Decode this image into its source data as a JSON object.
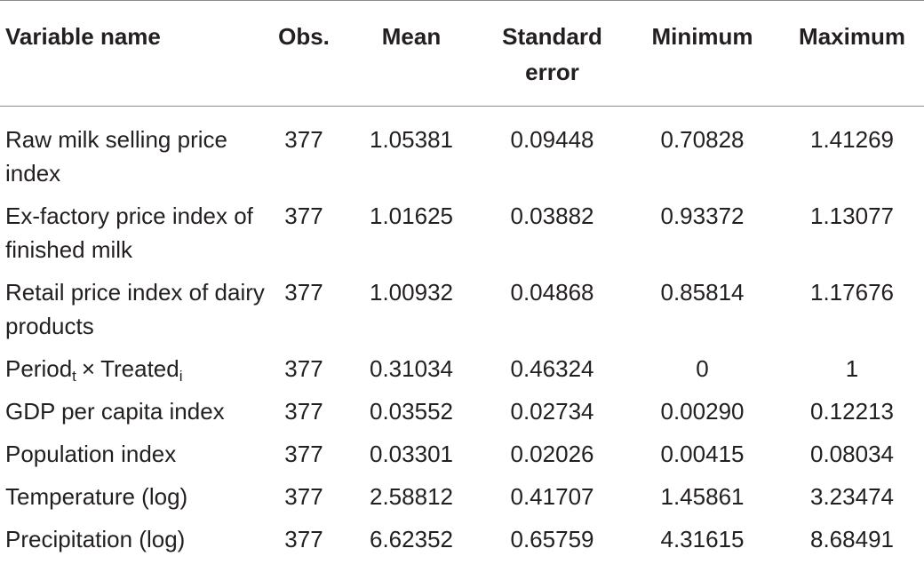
{
  "table": {
    "headers": [
      "Variable name",
      "Obs.",
      "Mean",
      "Standard error",
      "Minimum",
      "Maximum"
    ],
    "rows": [
      {
        "name": "Raw milk selling price index",
        "obs": "377",
        "mean": "1.05381",
        "se": "0.09448",
        "min": "0.70828",
        "max": "1.41269"
      },
      {
        "name": "Ex-factory price index of finished milk",
        "obs": "377",
        "mean": "1.01625",
        "se": "0.03882",
        "min": "0.93372",
        "max": "1.13077"
      },
      {
        "name": "Retail price index of dairy products",
        "obs": "377",
        "mean": "1.00932",
        "se": "0.04868",
        "min": "0.85814",
        "max": "1.17676"
      },
      {
        "name_part1": "Period",
        "name_sub1": "t",
        "name_times": "×",
        "name_part2": "Treated",
        "name_sub2": "i",
        "obs": "377",
        "mean": "0.31034",
        "se": "0.46324",
        "min": "0",
        "max": "1"
      },
      {
        "name": "GDP per capita index",
        "obs": "377",
        "mean": "0.03552",
        "se": "0.02734",
        "min": "0.00290",
        "max": "0.12213"
      },
      {
        "name": "Population index",
        "obs": "377",
        "mean": "0.03301",
        "se": "0.02026",
        "min": "0.00415",
        "max": "0.08034"
      },
      {
        "name": "Temperature (log)",
        "obs": "377",
        "mean": "2.58812",
        "se": "0.41707",
        "min": "1.45861",
        "max": "3.23474"
      },
      {
        "name": "Precipitation (log)",
        "obs": "377",
        "mean": "6.62352",
        "se": "0.65759",
        "min": "4.31615",
        "max": "8.68491"
      }
    ]
  }
}
